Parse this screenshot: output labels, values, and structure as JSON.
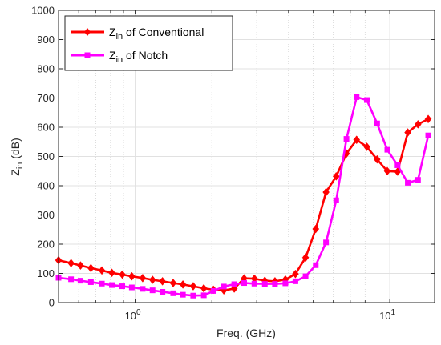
{
  "chart_data": {
    "type": "line",
    "xlabel": "Freq. (GHz)",
    "ylabel": {
      "main": "Z",
      "sub": "in",
      "unit": " (dB)"
    },
    "xscale": "log",
    "xlim": [
      0.5,
      15
    ],
    "ylim": [
      0,
      1000
    ],
    "xticks": [
      {
        "value": 1,
        "base": "10",
        "exp": "0"
      },
      {
        "value": 10,
        "base": "10",
        "exp": "1"
      }
    ],
    "yticks": [
      0,
      100,
      200,
      300,
      400,
      500,
      600,
      700,
      800,
      900,
      1000
    ],
    "grid": true,
    "minor_grid": true,
    "legend_position": "top-left",
    "series": [
      {
        "name": {
          "main": "Z",
          "sub": "in",
          "rest": " of Conventional"
        },
        "color": "#ff0000",
        "marker": "diamond",
        "points": [
          [
            0.5,
            145
          ],
          [
            0.56,
            135
          ],
          [
            0.61,
            127
          ],
          [
            0.67,
            118
          ],
          [
            0.74,
            110
          ],
          [
            0.81,
            102
          ],
          [
            0.89,
            96
          ],
          [
            0.97,
            90
          ],
          [
            1.07,
            84
          ],
          [
            1.17,
            78
          ],
          [
            1.28,
            73
          ],
          [
            1.41,
            67
          ],
          [
            1.54,
            62
          ],
          [
            1.69,
            56
          ],
          [
            1.86,
            49
          ],
          [
            2.03,
            44
          ],
          [
            2.23,
            42
          ],
          [
            2.45,
            48
          ],
          [
            2.68,
            83
          ],
          [
            2.94,
            82
          ],
          [
            3.23,
            75
          ],
          [
            3.54,
            73
          ],
          [
            3.89,
            79
          ],
          [
            4.26,
            98
          ],
          [
            4.67,
            154
          ],
          [
            5.12,
            252
          ],
          [
            5.62,
            378
          ],
          [
            6.16,
            432
          ],
          [
            6.76,
            510
          ],
          [
            7.41,
            557
          ],
          [
            8.13,
            533
          ],
          [
            8.92,
            490
          ],
          [
            9.78,
            450
          ],
          [
            10.73,
            448
          ],
          [
            11.77,
            582
          ],
          [
            12.91,
            610
          ],
          [
            14.16,
            628
          ]
        ]
      },
      {
        "name": {
          "main": "Z",
          "sub": "in",
          "rest": " of Notch"
        },
        "color": "#ff00ff",
        "marker": "square",
        "points": [
          [
            0.5,
            85
          ],
          [
            0.56,
            80
          ],
          [
            0.61,
            75
          ],
          [
            0.67,
            70
          ],
          [
            0.74,
            65
          ],
          [
            0.81,
            60
          ],
          [
            0.89,
            56
          ],
          [
            0.97,
            52
          ],
          [
            1.07,
            47
          ],
          [
            1.17,
            42
          ],
          [
            1.28,
            37
          ],
          [
            1.41,
            32
          ],
          [
            1.54,
            27
          ],
          [
            1.69,
            24
          ],
          [
            1.86,
            25
          ],
          [
            2.03,
            40
          ],
          [
            2.23,
            55
          ],
          [
            2.45,
            63
          ],
          [
            2.68,
            67
          ],
          [
            2.94,
            65
          ],
          [
            3.23,
            64
          ],
          [
            3.54,
            64
          ],
          [
            3.89,
            66
          ],
          [
            4.26,
            73
          ],
          [
            4.67,
            90
          ],
          [
            5.12,
            128
          ],
          [
            5.62,
            206
          ],
          [
            6.16,
            350
          ],
          [
            6.76,
            560
          ],
          [
            7.41,
            703
          ],
          [
            8.13,
            693
          ],
          [
            8.92,
            613
          ],
          [
            9.78,
            523
          ],
          [
            10.73,
            470
          ],
          [
            11.77,
            410
          ],
          [
            12.91,
            420
          ],
          [
            14.16,
            572
          ]
        ]
      }
    ]
  }
}
